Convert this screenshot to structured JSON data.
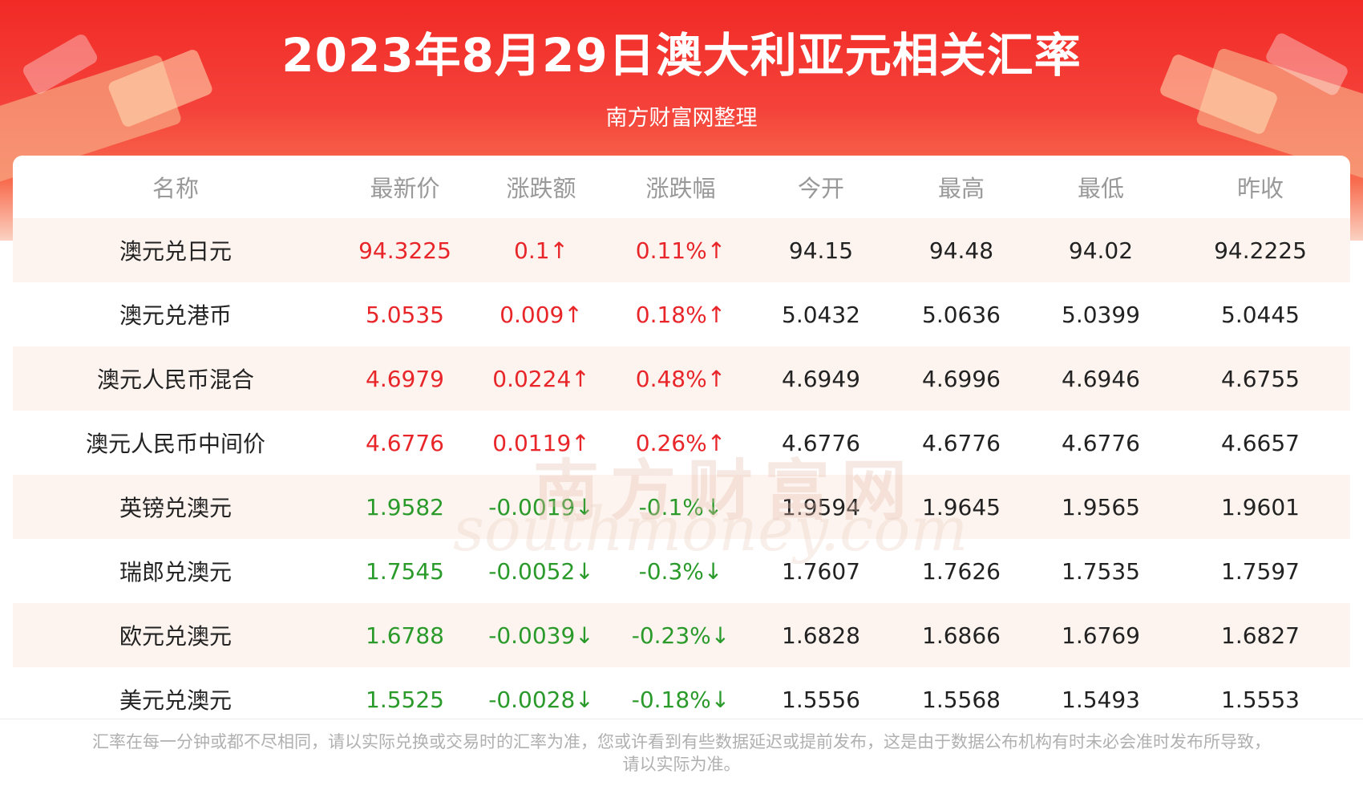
{
  "header": {
    "title": "2023年8月29日澳大利亚元相关汇率",
    "subtitle": "南方财富网整理"
  },
  "table": {
    "columns": [
      "名称",
      "最新价",
      "涨跌额",
      "涨跌幅",
      "今开",
      "最高",
      "最低",
      "昨收"
    ],
    "rows": [
      {
        "name": "澳元兑日元",
        "latest": "94.3225",
        "change": "0.1↑",
        "pct": "0.11%↑",
        "open": "94.15",
        "high": "94.48",
        "low": "94.02",
        "prev": "94.2225",
        "trend": "up"
      },
      {
        "name": "澳元兑港币",
        "latest": "5.0535",
        "change": "0.009↑",
        "pct": "0.18%↑",
        "open": "5.0432",
        "high": "5.0636",
        "low": "5.0399",
        "prev": "5.0445",
        "trend": "up"
      },
      {
        "name": "澳元人民币混合",
        "latest": "4.6979",
        "change": "0.0224↑",
        "pct": "0.48%↑",
        "open": "4.6949",
        "high": "4.6996",
        "low": "4.6946",
        "prev": "4.6755",
        "trend": "up"
      },
      {
        "name": "澳元人民币中间价",
        "latest": "4.6776",
        "change": "0.0119↑",
        "pct": "0.26%↑",
        "open": "4.6776",
        "high": "4.6776",
        "low": "4.6776",
        "prev": "4.6657",
        "trend": "up"
      },
      {
        "name": "英镑兑澳元",
        "latest": "1.9582",
        "change": "-0.0019↓",
        "pct": "-0.1%↓",
        "open": "1.9594",
        "high": "1.9645",
        "low": "1.9565",
        "prev": "1.9601",
        "trend": "down"
      },
      {
        "name": "瑞郎兑澳元",
        "latest": "1.7545",
        "change": "-0.0052↓",
        "pct": "-0.3%↓",
        "open": "1.7607",
        "high": "1.7626",
        "low": "1.7535",
        "prev": "1.7597",
        "trend": "down"
      },
      {
        "name": "欧元兑澳元",
        "latest": "1.6788",
        "change": "-0.0039↓",
        "pct": "-0.23%↓",
        "open": "1.6828",
        "high": "1.6866",
        "low": "1.6769",
        "prev": "1.6827",
        "trend": "down"
      },
      {
        "name": "美元兑澳元",
        "latest": "1.5525",
        "change": "-0.0028↓",
        "pct": "-0.18%↓",
        "open": "1.5556",
        "high": "1.5568",
        "low": "1.5493",
        "prev": "1.5553",
        "trend": "down"
      }
    ]
  },
  "watermark": {
    "cn": "南方财富网",
    "en": "southmoney.com"
  },
  "footer": {
    "line1": "汇率在每一分钟或都不尽相同，请以实际兑换或交易时的汇率为准，您或许看到有些数据延迟或提前发布，这是由于数据公布机构有时未必会准时发布所导致，",
    "line2": "请以实际为准。"
  },
  "colors": {
    "up": "#e8262a",
    "down": "#2a9a2a",
    "header_red": "#f22a26"
  }
}
